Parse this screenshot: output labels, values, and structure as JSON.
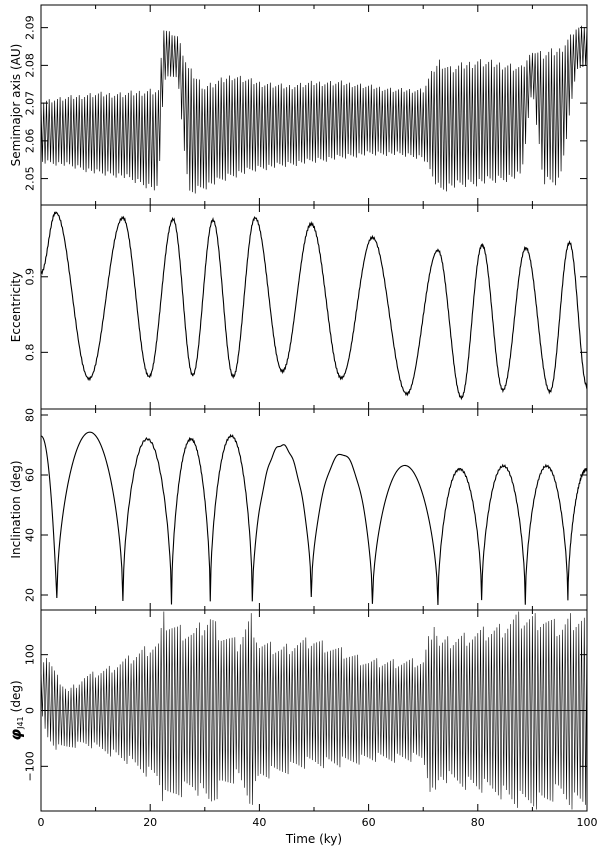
{
  "chart_data": [
    {
      "type": "line",
      "ylabel": "Semimajor axis (AU)",
      "xlim": [
        0,
        100
      ],
      "ylim": [
        2.043,
        2.096
      ],
      "yticks": [
        2.05,
        2.06,
        2.07,
        2.08,
        2.09
      ],
      "ytick_labels": [
        "2.05",
        "2.06",
        "2.07",
        "2.08",
        "2.09"
      ],
      "series": [
        {
          "style": "oscillating-band",
          "period_ky": 0.5,
          "x": [
            0,
            5,
            10,
            15,
            20,
            21.5,
            22.5,
            25,
            27,
            30,
            35,
            40,
            45,
            50,
            55,
            60,
            65,
            70,
            72,
            73,
            75,
            80,
            85,
            88,
            90,
            92,
            95,
            98,
            100
          ],
          "lo": [
            2.054,
            2.053,
            2.051,
            2.05,
            2.047,
            2.046,
            2.076,
            2.077,
            2.045,
            2.047,
            2.05,
            2.052,
            2.053,
            2.054,
            2.055,
            2.056,
            2.056,
            2.055,
            2.049,
            2.046,
            2.047,
            2.048,
            2.049,
            2.05,
            2.074,
            2.048,
            2.048,
            2.078,
            2.08
          ],
          "hi": [
            2.071,
            2.072,
            2.073,
            2.073,
            2.074,
            2.074,
            2.09,
            2.088,
            2.08,
            2.075,
            2.078,
            2.076,
            2.075,
            2.076,
            2.076,
            2.075,
            2.074,
            2.074,
            2.08,
            2.082,
            2.08,
            2.082,
            2.081,
            2.08,
            2.084,
            2.084,
            2.085,
            2.09,
            2.091
          ]
        }
      ]
    },
    {
      "type": "line",
      "ylabel": "Eccentricity",
      "xlim": [
        0,
        100
      ],
      "ylim": [
        0.725,
        0.995
      ],
      "yticks": [
        0.8,
        0.9
      ],
      "ytick_labels": [
        "0.8",
        "0.9"
      ],
      "series": [
        {
          "style": "extrema-curve",
          "extrema": [
            {
              "x": 0,
              "y": 0.905
            },
            {
              "x": 2.7,
              "y": 0.985
            },
            {
              "x": 8.8,
              "y": 0.765
            },
            {
              "x": 15,
              "y": 0.978
            },
            {
              "x": 19.8,
              "y": 0.768
            },
            {
              "x": 24.2,
              "y": 0.976
            },
            {
              "x": 27.8,
              "y": 0.77
            },
            {
              "x": 31.5,
              "y": 0.975
            },
            {
              "x": 35.2,
              "y": 0.768
            },
            {
              "x": 39.2,
              "y": 0.978
            },
            {
              "x": 44.2,
              "y": 0.775
            },
            {
              "x": 49.5,
              "y": 0.97
            },
            {
              "x": 55,
              "y": 0.766
            },
            {
              "x": 60.7,
              "y": 0.952
            },
            {
              "x": 67,
              "y": 0.745
            },
            {
              "x": 72.7,
              "y": 0.935
            },
            {
              "x": 77,
              "y": 0.74
            },
            {
              "x": 80.8,
              "y": 0.942
            },
            {
              "x": 84.6,
              "y": 0.75
            },
            {
              "x": 88.8,
              "y": 0.938
            },
            {
              "x": 93.2,
              "y": 0.748
            },
            {
              "x": 96.8,
              "y": 0.945
            },
            {
              "x": 100,
              "y": 0.755
            }
          ]
        }
      ]
    },
    {
      "type": "line",
      "ylabel": "Inclination (deg)",
      "xlim": [
        0,
        100
      ],
      "ylim": [
        15,
        82
      ],
      "yticks": [
        20,
        40,
        60,
        80
      ],
      "ytick_labels": [
        "20",
        "40",
        "60",
        "80"
      ],
      "series": [
        {
          "style": "arches",
          "start_value": 73,
          "end_value": 62,
          "minima": [
            {
              "x": 2.9,
              "y": 19
            },
            {
              "x": 15,
              "y": 18
            },
            {
              "x": 23.9,
              "y": 17
            },
            {
              "x": 31,
              "y": 18
            },
            {
              "x": 38.7,
              "y": 18
            },
            {
              "x": 49.5,
              "y": 19
            },
            {
              "x": 60.7,
              "y": 17
            },
            {
              "x": 72.7,
              "y": 17
            },
            {
              "x": 80.7,
              "y": 18
            },
            {
              "x": 88.7,
              "y": 17
            },
            {
              "x": 96.5,
              "y": 18
            }
          ],
          "peaks": [
            74,
            72,
            72,
            73,
            70,
            67,
            63,
            62,
            63,
            63,
            61
          ]
        }
      ]
    },
    {
      "type": "line",
      "ylabel": "φJ41 (deg)",
      "ylabel_main": "φ",
      "ylabel_sub": "J41",
      "ylabel_units": "(deg)",
      "xlabel": "Time (ky)",
      "xlim": [
        0,
        100
      ],
      "ylim": [
        -180,
        180
      ],
      "yticks": [
        -100,
        0,
        100
      ],
      "ytick_labels": [
        "−100",
        "0",
        "100"
      ],
      "xticks": [
        0,
        20,
        40,
        60,
        80,
        100
      ],
      "xtick_labels": [
        "0",
        "20",
        "40",
        "60",
        "80",
        "100"
      ],
      "reference_line_y": 0,
      "series": [
        {
          "style": "libration",
          "period_ky": 0.5,
          "x": [
            0,
            1,
            3,
            5,
            8,
            12,
            16,
            20,
            21.5,
            22.5,
            25,
            28,
            31,
            33,
            36,
            38.5,
            40,
            44,
            47,
            50,
            55,
            60,
            65,
            70,
            72,
            73,
            76,
            80,
            84,
            87,
            89,
            92,
            95,
            97,
            100
          ],
          "amplitude": [
            50,
            80,
            70,
            55,
            65,
            80,
            100,
            125,
            130,
            180,
            160,
            150,
            180,
            150,
            130,
            180,
            130,
            120,
            120,
            120,
            110,
            95,
            95,
            95,
            180,
            130,
            140,
            150,
            160,
            180,
            180,
            180,
            160,
            180,
            180
          ],
          "center": [
            40,
            25,
            -5,
            -15,
            0,
            0,
            0,
            0,
            0,
            0,
            0,
            0,
            0,
            0,
            0,
            0,
            0,
            0,
            10,
            15,
            5,
            0,
            0,
            0,
            0,
            0,
            0,
            0,
            0,
            0,
            0,
            0,
            0,
            0,
            0
          ]
        }
      ]
    }
  ]
}
